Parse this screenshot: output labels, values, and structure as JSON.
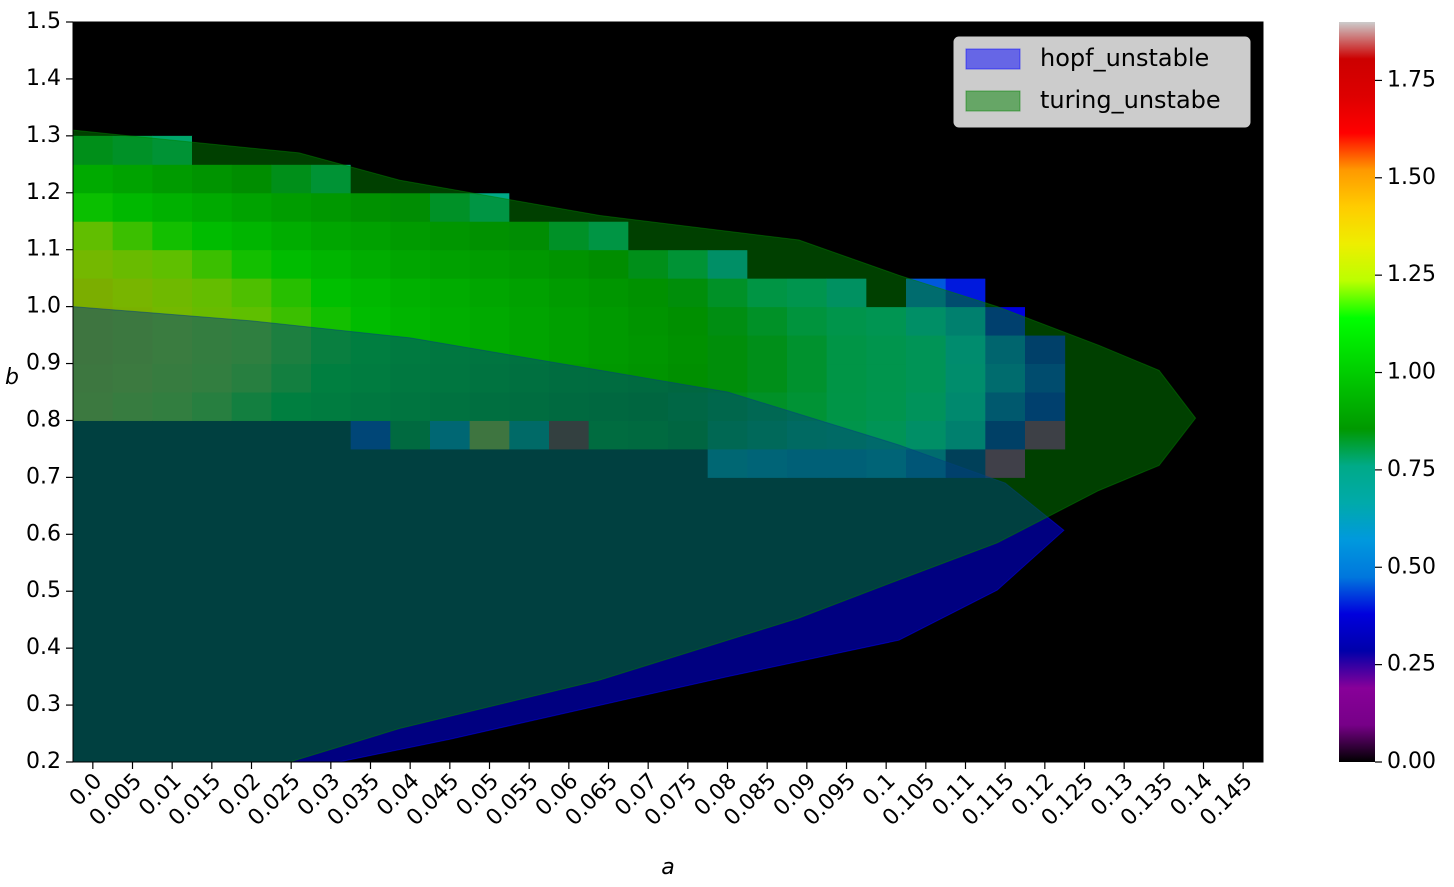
{
  "chart_data": {
    "type": "heatmap",
    "xlabel": "a",
    "ylabel": "b",
    "xlim": [
      -0.0025,
      0.1475
    ],
    "ylim": [
      0.2,
      1.5
    ],
    "xticks": [
      {
        "value": 0,
        "label": "0.0"
      },
      0.005,
      0.01,
      0.015,
      0.02,
      0.025,
      0.03,
      0.035,
      0.04,
      0.045,
      0.05,
      0.055,
      0.06,
      0.065,
      0.07,
      0.075,
      0.08,
      0.085,
      0.09,
      0.095,
      0.1,
      0.105,
      0.11,
      0.115,
      0.12,
      0.125,
      0.13,
      0.135,
      0.14,
      0.145
    ],
    "yticks": [
      0.2,
      0.3,
      0.4,
      0.5,
      0.6,
      0.7,
      0.8,
      0.9,
      {
        "value": 1,
        "label": "1.0"
      },
      1.1,
      1.2,
      1.3,
      1.4,
      1.5
    ],
    "x": [
      0,
      0.005,
      0.01,
      0.015,
      0.02,
      0.025,
      0.03,
      0.035,
      0.04,
      0.045,
      0.05,
      0.055,
      0.06,
      0.065,
      0.07,
      0.075,
      0.08,
      0.085,
      0.09,
      0.095,
      0.1,
      0.105,
      0.11,
      0.115,
      0.12
    ],
    "y": [
      0.725,
      0.775,
      0.825,
      0.875,
      0.925,
      0.975,
      1.025,
      1.075,
      1.125,
      1.175,
      1.225,
      1.275
    ],
    "z": [
      [
        0,
        0,
        1.35,
        1.38,
        1.4,
        1.4,
        1.38,
        1.32,
        1.25,
        1.15,
        1.02,
        0.82
      ],
      [
        0,
        0,
        1.3,
        1.34,
        1.36,
        1.36,
        1.34,
        1.28,
        1.2,
        1.1,
        0.98,
        0.8
      ],
      [
        0,
        0,
        1.26,
        1.3,
        1.32,
        1.32,
        1.3,
        1.24,
        1.16,
        1.06,
        0.94,
        0.78
      ],
      [
        0,
        0,
        1.22,
        1.26,
        1.28,
        1.28,
        1.26,
        1.2,
        1.12,
        1.02,
        0.9,
        0
      ],
      [
        0,
        0,
        1.18,
        1.22,
        1.24,
        1.24,
        1.22,
        1.16,
        1.08,
        0.98,
        0.86,
        0
      ],
      [
        0,
        0,
        1.14,
        1.18,
        1.2,
        1.2,
        1.18,
        1.12,
        1.04,
        0.95,
        0.82,
        0
      ],
      [
        0,
        0,
        1.1,
        1.14,
        1.16,
        1.16,
        1.14,
        1.08,
        1.0,
        0.92,
        0.78,
        0
      ],
      [
        0,
        0.4,
        1.06,
        1.1,
        1.12,
        1.12,
        1.1,
        1.04,
        0.97,
        0.88,
        0,
        0
      ],
      [
        0,
        0.9,
        1.02,
        1.06,
        1.08,
        1.08,
        1.06,
        1.0,
        0.94,
        0.85,
        0,
        0
      ],
      [
        0,
        0.6,
        0.99,
        1.03,
        1.05,
        1.05,
        1.03,
        0.97,
        0.91,
        0.8,
        0,
        0
      ],
      [
        0,
        1.4,
        0.96,
        1.0,
        1.02,
        1.02,
        1.0,
        0.95,
        0.88,
        0.76,
        0,
        0
      ],
      [
        0,
        0.7,
        0.93,
        0.97,
        0.99,
        0.99,
        0.97,
        0.92,
        0.85,
        0,
        0,
        0
      ],
      [
        0,
        1.8,
        0.9,
        0.94,
        0.96,
        0.96,
        0.94,
        0.89,
        0.8,
        0,
        0,
        0
      ],
      [
        0,
        0.92,
        0.88,
        0.92,
        0.93,
        0.93,
        0.91,
        0.86,
        0.76,
        0,
        0,
        0
      ],
      [
        0,
        0.9,
        0.86,
        0.9,
        0.91,
        0.9,
        0.88,
        0.82,
        0,
        0,
        0,
        0
      ],
      [
        0,
        0.85,
        0.84,
        0.87,
        0.88,
        0.87,
        0.84,
        0.78,
        0,
        0,
        0,
        0
      ],
      [
        0.6,
        0.8,
        0.82,
        0.84,
        0.84,
        0.83,
        0.8,
        0.6,
        0,
        0,
        0,
        0
      ],
      [
        0.55,
        0.78,
        0.8,
        0.82,
        0.82,
        0.8,
        0.76,
        0,
        0,
        0,
        0,
        0
      ],
      [
        0.5,
        0.76,
        0.78,
        0.79,
        0.79,
        0.77,
        0.7,
        0,
        0,
        0,
        0,
        0
      ],
      [
        0.5,
        0.72,
        0.74,
        0.75,
        0.75,
        0.72,
        0.62,
        0,
        0,
        0,
        0,
        0
      ],
      [
        0.55,
        0.66,
        0.7,
        0.71,
        0.71,
        0.68,
        0,
        0,
        0,
        0,
        0,
        0
      ],
      [
        0.45,
        0.6,
        0.64,
        0.66,
        0.66,
        0.6,
        0.45,
        0,
        0,
        0,
        0,
        0
      ],
      [
        0.3,
        0.5,
        0.55,
        0.58,
        0.57,
        0.5,
        0.4,
        0,
        0,
        0,
        0,
        0
      ],
      [
        0.15,
        0.35,
        0.42,
        0.45,
        0.44,
        0.38,
        0,
        0,
        0,
        0,
        0,
        0
      ],
      [
        0,
        0.12,
        0.38,
        0.4,
        0.36,
        0,
        0,
        0,
        0,
        0,
        0,
        0
      ]
    ],
    "colormap": "nipy_spectral",
    "clim": [
      0,
      1.9
    ],
    "colorbar_ticks": [
      {
        "value": 0,
        "label": "0.00"
      },
      0.25,
      {
        "value": 0.5,
        "label": "0.50"
      },
      0.75,
      {
        "value": 1,
        "label": "1.00"
      },
      1.25,
      {
        "value": 1.5,
        "label": "1.50"
      },
      1.75
    ],
    "regions": [
      {
        "name": "hopf_unstable",
        "color": "#0000ff",
        "alpha": 0.5,
        "a": [
          -0.0025,
          0.02,
          0.04,
          0.064,
          0.08,
          0.1016,
          0.115,
          0.1224,
          0.114,
          0.1016,
          0.08,
          0.064,
          0.045,
          0.031,
          -0.0025
        ],
        "b": [
          1.0,
          0.975,
          0.945,
          0.888,
          0.85,
          0.757,
          0.69,
          0.607,
          0.502,
          0.414,
          0.35,
          0.3,
          0.24,
          0.2,
          0.2
        ]
      },
      {
        "name": "turing_unstabe",
        "color": "#008000",
        "alpha": 0.5,
        "a": [
          -0.0025,
          0.026,
          0.0387,
          0.0639,
          0.089,
          0.1016,
          0.114,
          0.1268,
          0.1344,
          0.139,
          0.1344,
          0.1268,
          0.114,
          0.1016,
          0.089,
          0.0639,
          0.0387,
          0.0248,
          -0.0025
        ],
        "b": [
          1.31,
          1.27,
          1.222,
          1.16,
          1.117,
          1.055,
          1.0,
          0.932,
          0.888,
          0.804,
          0.721,
          0.677,
          0.585,
          0.52,
          0.453,
          0.344,
          0.259,
          0.2,
          0.2
        ]
      }
    ],
    "legend": "upper right"
  }
}
